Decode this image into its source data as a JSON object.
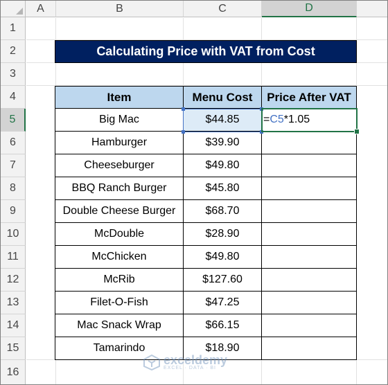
{
  "columns": [
    "A",
    "B",
    "C",
    "D"
  ],
  "rows": [
    "1",
    "2",
    "3",
    "4",
    "5",
    "6",
    "7",
    "8",
    "9",
    "10",
    "11",
    "12",
    "13",
    "14",
    "15",
    "16"
  ],
  "title": "Calculating Price with VAT from Cost",
  "table": {
    "headers": [
      "Item",
      "Menu Cost",
      "Price After VAT"
    ],
    "rows": [
      {
        "item": "Big Mac",
        "cost": "$44.85"
      },
      {
        "item": "Hamburger",
        "cost": "$39.90"
      },
      {
        "item": "Cheeseburger",
        "cost": "$49.80"
      },
      {
        "item": "BBQ Ranch Burger",
        "cost": "$45.80"
      },
      {
        "item": "Double Cheese Burger",
        "cost": "$68.70"
      },
      {
        "item": "McDouble",
        "cost": "$28.90"
      },
      {
        "item": "McChicken",
        "cost": "$49.80"
      },
      {
        "item": "McRib",
        "cost": "$127.60"
      },
      {
        "item": "Filet-O-Fish",
        "cost": "$47.25"
      },
      {
        "item": "Mac Snack Wrap",
        "cost": "$66.15"
      },
      {
        "item": "Tamarindo",
        "cost": "$18.90"
      }
    ]
  },
  "formula": {
    "prefix": "=",
    "ref": "C5",
    "suffix": "*1.05"
  },
  "watermark": {
    "name": "exceldemy",
    "tagline": "EXCEL · DATA · BI"
  },
  "colors": {
    "title_bg": "#002060",
    "header_bg": "#bdd7ee",
    "active_green": "#217346",
    "ref_blue": "#4472c4"
  }
}
